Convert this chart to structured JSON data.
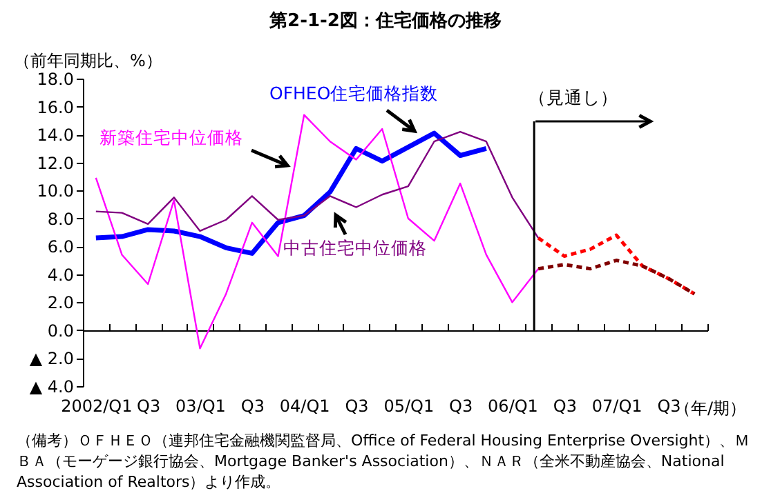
{
  "chart_data": {
    "type": "line",
    "title": "第2-1-2図：住宅価格の推移",
    "ylabel": "（前年同期比、%）",
    "xlabel": "（年/期）",
    "categories": [
      "2002/Q1",
      null,
      "Q3",
      null,
      "03/Q1",
      null,
      "Q3",
      null,
      "04/Q1",
      null,
      "Q3",
      null,
      "05/Q1",
      null,
      "Q3",
      null,
      "06/Q1",
      null,
      "Q3",
      null,
      "07/Q1",
      null,
      "Q3",
      null
    ],
    "series": [
      {
        "name": "OFHEO住宅価格指数",
        "color": "#0000ff",
        "values": [
          6.6,
          6.7,
          7.2,
          7.1,
          6.7,
          5.9,
          5.5,
          7.7,
          8.2,
          9.9,
          13.0,
          12.1,
          13.1,
          14.1,
          12.5,
          13.0,
          null,
          null,
          null,
          null,
          null,
          null,
          null,
          null
        ]
      },
      {
        "name": "新築住宅中位価格",
        "color": "#ff00ff",
        "values": [
          10.9,
          5.4,
          3.3,
          9.3,
          -1.3,
          2.6,
          7.7,
          5.3,
          15.4,
          13.5,
          12.2,
          14.4,
          8.0,
          6.4,
          10.5,
          5.4,
          2.0,
          4.4,
          null,
          null,
          null,
          null,
          null,
          null
        ]
      },
      {
        "name": "中古住宅中位価格",
        "color": "#800080",
        "values": [
          8.5,
          8.4,
          7.6,
          9.5,
          7.1,
          7.9,
          9.6,
          7.9,
          8.2,
          9.6,
          8.8,
          9.7,
          10.3,
          13.5,
          14.2,
          13.5,
          9.5,
          6.6,
          null,
          null,
          null,
          null,
          null,
          null
        ]
      },
      {
        "color": "#ff0000",
        "line_style": "dashed",
        "values": [
          null,
          null,
          null,
          null,
          null,
          null,
          null,
          null,
          null,
          null,
          null,
          null,
          null,
          null,
          null,
          null,
          null,
          6.6,
          5.3,
          5.8,
          6.8,
          4.6,
          3.7,
          2.6
        ]
      },
      {
        "color": "#800000",
        "line_style": "dashed",
        "values": [
          null,
          null,
          null,
          null,
          null,
          null,
          null,
          null,
          null,
          null,
          null,
          null,
          null,
          null,
          null,
          null,
          null,
          4.4,
          4.7,
          4.4,
          5.0,
          4.6,
          3.7,
          2.6
        ]
      }
    ],
    "ylim": [
      -4,
      18
    ],
    "yticks": [
      {
        "value": -4,
        "label": "▲ 4.0"
      },
      {
        "value": -2,
        "label": "▲ 2.0"
      },
      {
        "value": 0,
        "label": "0.0"
      },
      {
        "value": 2,
        "label": "2.0"
      },
      {
        "value": 4,
        "label": "4.0"
      },
      {
        "value": 6,
        "label": "6.0"
      },
      {
        "value": 8,
        "label": "8.0"
      },
      {
        "value": 10,
        "label": "10.0"
      },
      {
        "value": 12,
        "label": "12.0"
      },
      {
        "value": 14,
        "label": "14.0"
      },
      {
        "value": 16,
        "label": "16.0"
      },
      {
        "value": 18,
        "label": "18.0"
      }
    ],
    "ref_lines": [
      {
        "axis": "x",
        "label": "（見通し）"
      }
    ],
    "annotations": [
      "（備考）ＯＦＨＥＯ（連邦住宅金融機関監督局、Office of Federal Housing Enterprise Oversight）、ＭＢＡ（モーゲージ銀行協会、Mortgage Banker's Association）、ＮＡＲ（全米不動産協会、National Association of Realtors）より作成。"
    ]
  }
}
